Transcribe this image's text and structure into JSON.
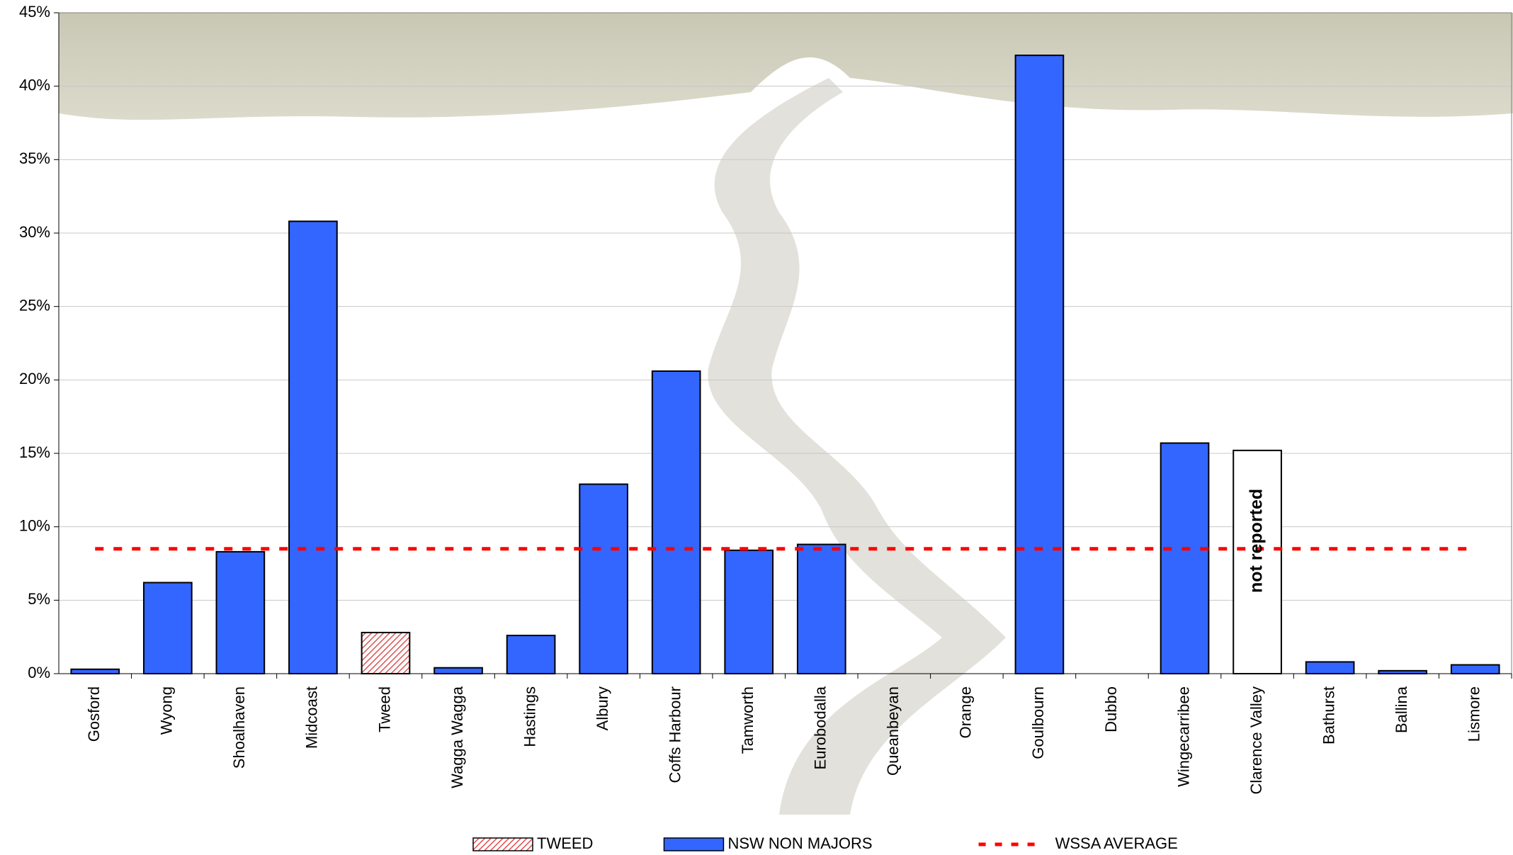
{
  "chart_data": {
    "type": "bar",
    "categories": [
      "Gosford",
      "Wyong",
      "Shoalhaven",
      "Midcoast",
      "Tweed",
      "Wagga Wagga",
      "Hastings",
      "Albury",
      "Coffs Harbour",
      "Tamworth",
      "Eurobodalla",
      "Queanbeyan",
      "Orange",
      "Goulbourn",
      "Dubbo",
      "Wingecarribee",
      "Clarence Valley",
      "Bathurst",
      "Ballina",
      "Lismore"
    ],
    "series": [
      {
        "name": "TWEED",
        "color": "#e05050",
        "hatch": true,
        "values": [
          null,
          null,
          null,
          null,
          2.8,
          null,
          null,
          null,
          null,
          null,
          null,
          null,
          null,
          null,
          null,
          null,
          null,
          null,
          null,
          null
        ]
      },
      {
        "name": "NSW NON MAJORS",
        "color": "#3366ff",
        "values": [
          0.3,
          6.2,
          8.3,
          30.8,
          null,
          0.4,
          2.6,
          12.9,
          20.6,
          8.4,
          8.8,
          0,
          0,
          42.1,
          0,
          15.7,
          null,
          0.8,
          0.2,
          0.6
        ]
      }
    ],
    "reference_lines": [
      {
        "name": "WSSA AVERAGE",
        "value": 8.5,
        "color": "#ff0000"
      }
    ],
    "annotations": [
      {
        "text": "not reported",
        "category": "Clarence Valley",
        "value": 15.2
      }
    ],
    "ylim": [
      0,
      45
    ],
    "yticks": [
      {
        "value": 0,
        "label": "0%"
      },
      {
        "value": 5,
        "label": "5%"
      },
      {
        "value": 10,
        "label": "10%"
      },
      {
        "value": 15,
        "label": "15%"
      },
      {
        "value": 20,
        "label": "20%"
      },
      {
        "value": 25,
        "label": "25%"
      },
      {
        "value": 30,
        "label": "30%"
      },
      {
        "value": 35,
        "label": "35%"
      },
      {
        "value": 40,
        "label": "40%"
      },
      {
        "value": 45,
        "label": "45%"
      }
    ],
    "grid": true
  }
}
